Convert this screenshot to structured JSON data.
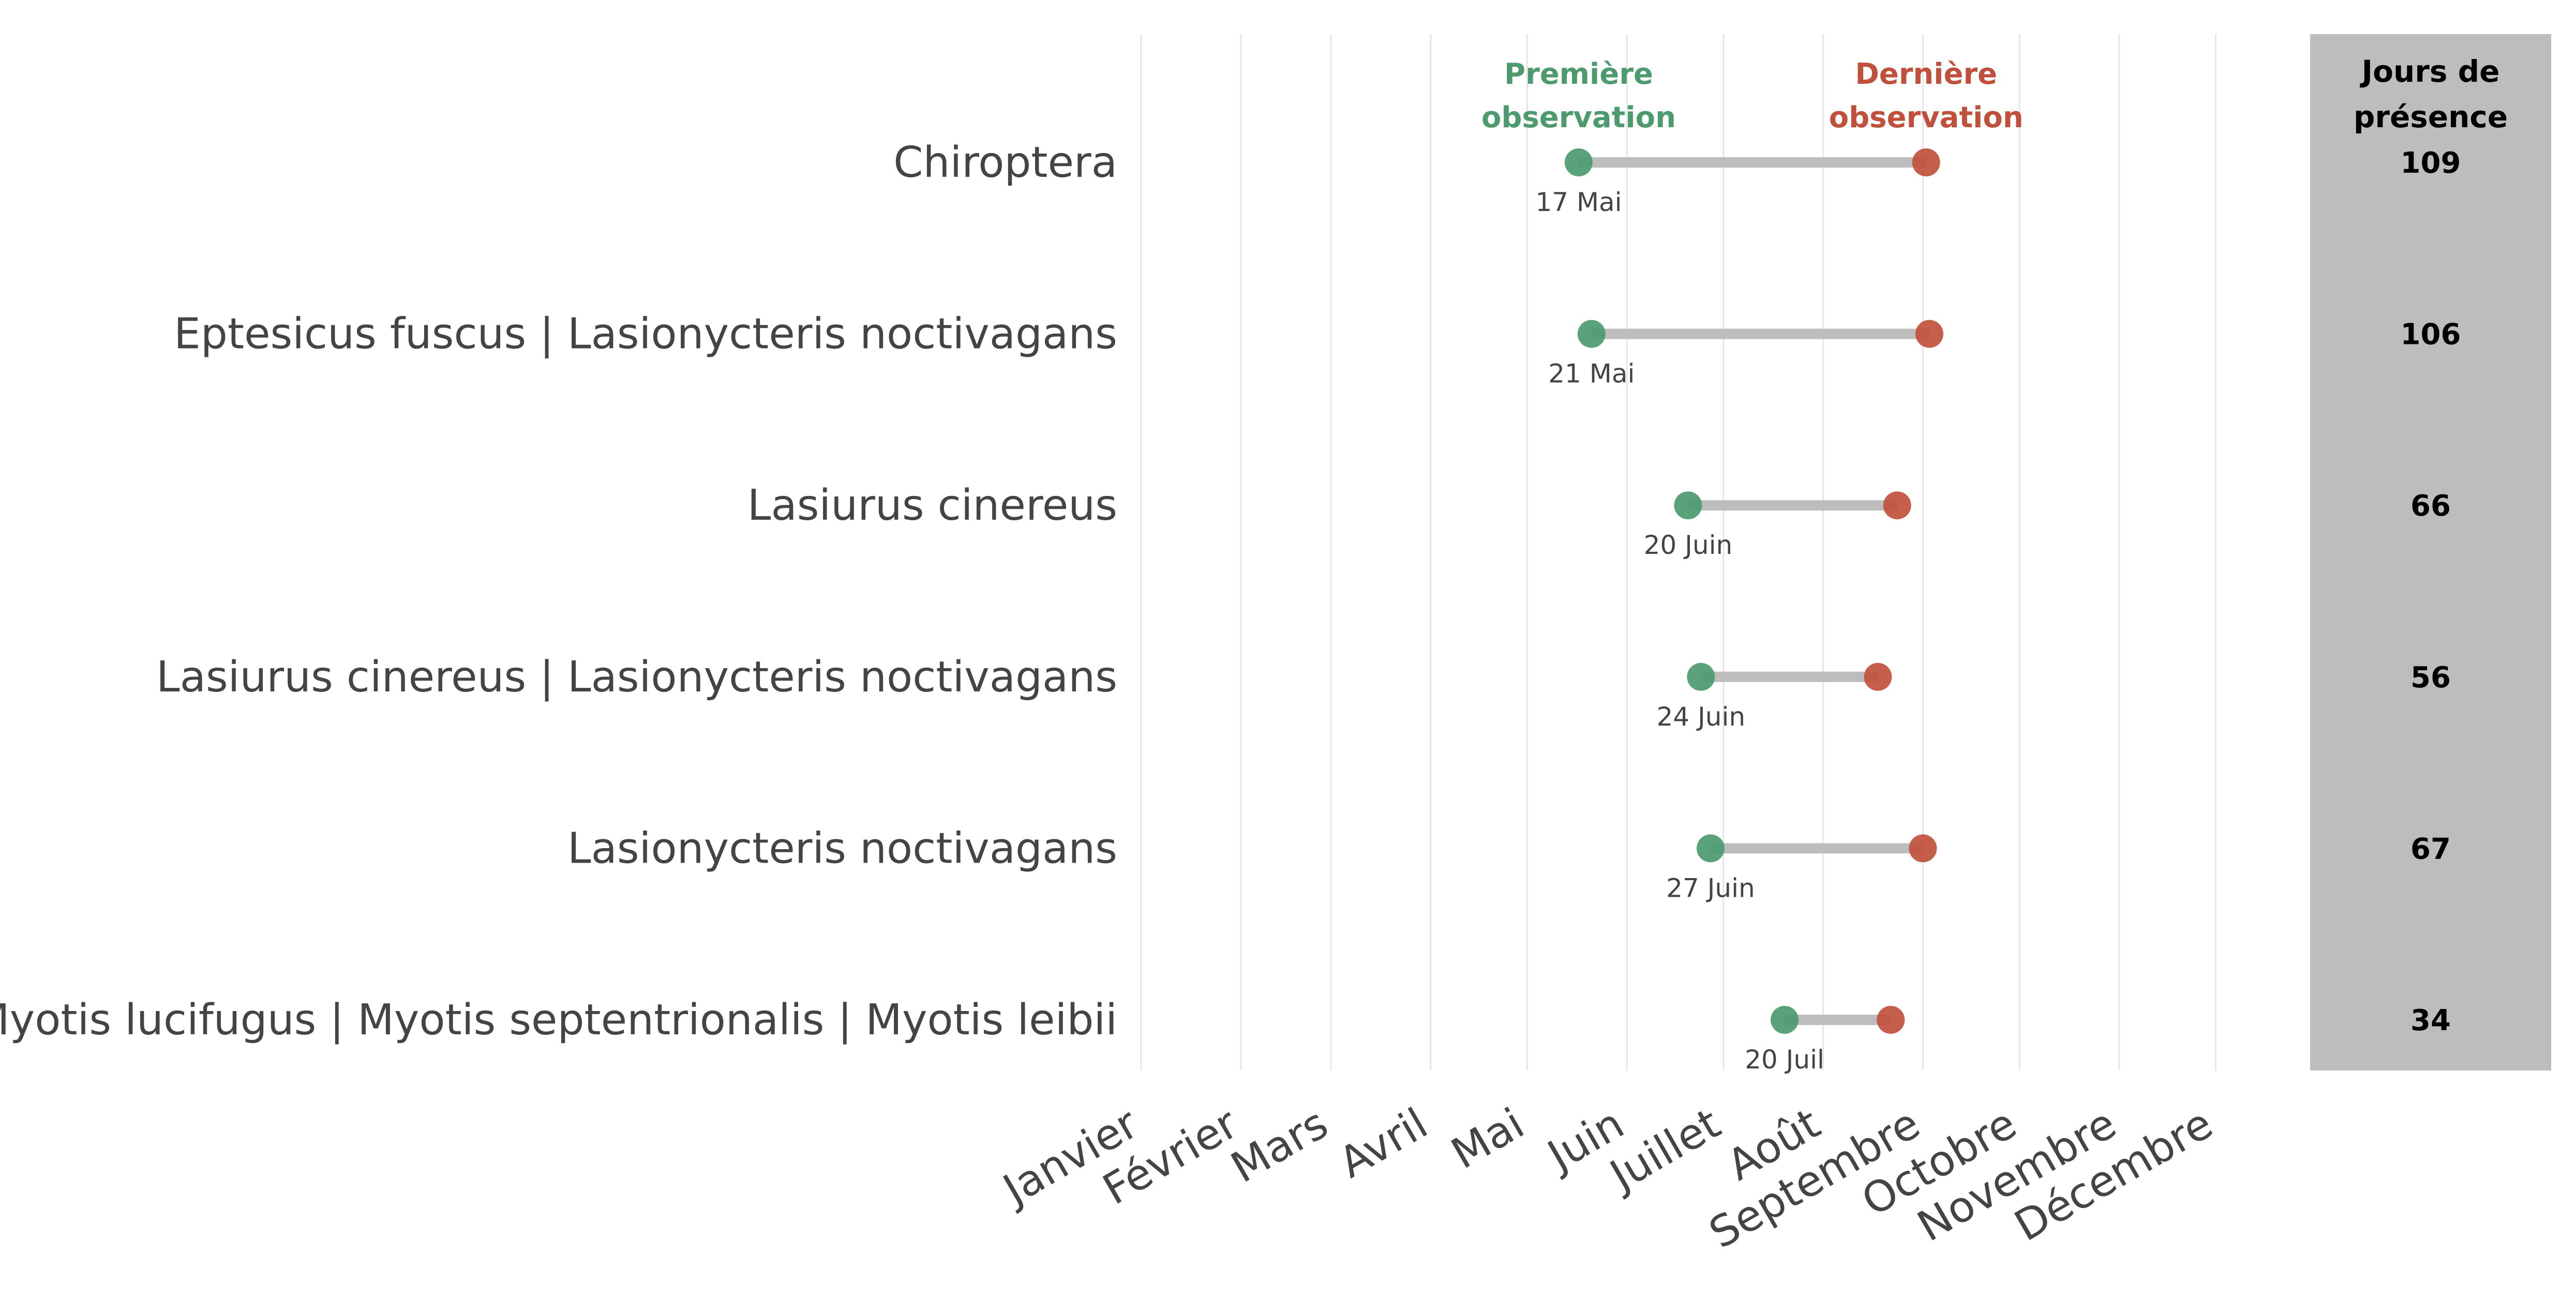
{
  "chart_data": {
    "type": "dumbbell",
    "y_categories": [
      "Chiroptera",
      "Eptesicus fuscus | Lasionycteris noctivagans",
      "Lasiurus cinereus",
      "Lasiurus cinereus | Lasionycteris noctivagans",
      "Lasionycteris noctivagans",
      "Myotis lucifugus | Myotis septentrionalis | Myotis leibii"
    ],
    "x_ticks": [
      "Janvier",
      "Février",
      "Mars",
      "Avril",
      "Mai",
      "Juin",
      "Juillet",
      "Août",
      "Septembre",
      "Octobre",
      "Novembre",
      "Décembre"
    ],
    "series": [
      {
        "name": "Première\nobservation",
        "color": "#4c9a6e",
        "day_of_year": [
          137,
          141,
          171,
          175,
          178,
          201
        ],
        "labels": [
          "17 Mai",
          "21 Mai",
          "20 Juin",
          "24 Juin",
          "27 Juin",
          "20 Juil"
        ]
      },
      {
        "name": "Dernière\nobservation",
        "color": "#c0503c",
        "day_of_year": [
          245,
          246,
          236,
          230,
          244,
          234
        ]
      }
    ],
    "connector_color": "#bdbdbd",
    "table": {
      "header": "Jours de\nprésence",
      "values": [
        109,
        106,
        66,
        56,
        67,
        34
      ],
      "background": "#bdbdbd"
    },
    "grid": true,
    "xlim_day_of_year": [
      1,
      365
    ]
  }
}
